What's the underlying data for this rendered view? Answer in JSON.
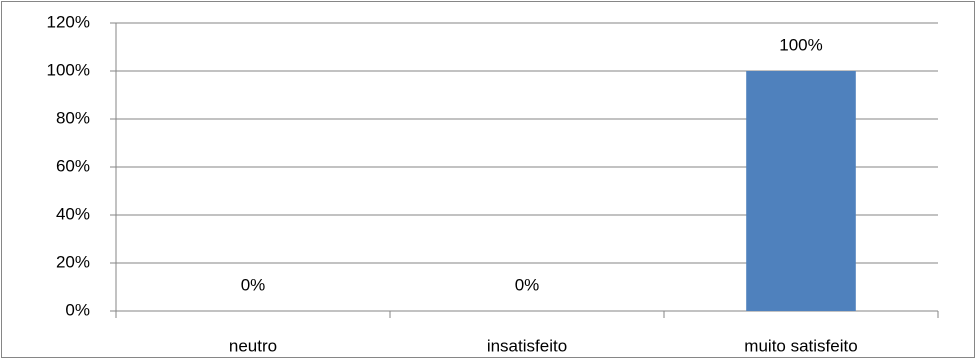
{
  "chart_data": {
    "type": "bar",
    "categories": [
      "neutro",
      "insatisfeito",
      "muito satisfeito"
    ],
    "values": [
      0,
      0,
      100
    ],
    "value_labels": [
      "0%",
      "0%",
      "100%"
    ],
    "color": "#4f81bd",
    "ylim": [
      0,
      120
    ],
    "yticks": [
      {
        "value": 0,
        "label": "0%"
      },
      {
        "value": 20,
        "label": "20%"
      },
      {
        "value": 40,
        "label": "40%"
      },
      {
        "value": 60,
        "label": "60%"
      },
      {
        "value": 80,
        "label": "80%"
      },
      {
        "value": 100,
        "label": "100%"
      },
      {
        "value": 120,
        "label": "120%"
      }
    ],
    "grid": true
  }
}
